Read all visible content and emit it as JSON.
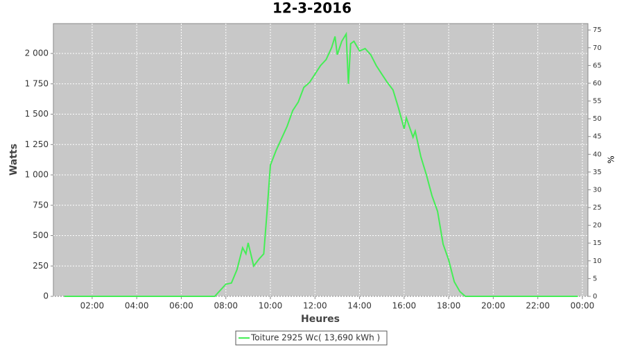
{
  "chart_data": {
    "type": "line",
    "title": "12-3-2016",
    "x_label": "Heures",
    "y_label": "Watts",
    "y2_label": "%",
    "x": [
      0.75,
      7.5,
      7.75,
      8.0,
      8.25,
      8.5,
      8.75,
      8.9,
      9.0,
      9.25,
      9.5,
      9.7,
      9.85,
      10.0,
      10.25,
      10.5,
      10.75,
      11.0,
      11.25,
      11.5,
      11.75,
      12.0,
      12.25,
      12.5,
      12.75,
      12.9,
      13.0,
      13.2,
      13.4,
      13.5,
      13.6,
      13.75,
      14.0,
      14.25,
      14.5,
      14.75,
      15.0,
      15.25,
      15.5,
      15.75,
      16.0,
      16.1,
      16.4,
      16.5,
      16.75,
      17.0,
      17.25,
      17.5,
      17.75,
      18.0,
      18.25,
      18.5,
      18.75,
      23.8
    ],
    "series": [
      {
        "name": "Toiture 2925 Wc( 13,690 kWh )",
        "color": "#44ee55",
        "values": [
          0,
          0,
          50,
          100,
          110,
          220,
          400,
          350,
          440,
          250,
          310,
          350,
          700,
          1080,
          1200,
          1300,
          1400,
          1530,
          1600,
          1720,
          1760,
          1830,
          1900,
          1950,
          2050,
          2140,
          1990,
          2100,
          2160,
          1750,
          2080,
          2100,
          2020,
          2040,
          1990,
          1900,
          1830,
          1760,
          1700,
          1550,
          1380,
          1470,
          1310,
          1360,
          1150,
          1000,
          830,
          700,
          430,
          300,
          120,
          40,
          0,
          0
        ]
      }
    ],
    "xlim": [
      0.26,
      24.25
    ],
    "xticks": [
      {
        "value": 2,
        "label": "02:00"
      },
      {
        "value": 4,
        "label": "04:00"
      },
      {
        "value": 6,
        "label": "06:00"
      },
      {
        "value": 8,
        "label": "08:00"
      },
      {
        "value": 10,
        "label": "10:00"
      },
      {
        "value": 12,
        "label": "12:00"
      },
      {
        "value": 14,
        "label": "14:00"
      },
      {
        "value": 16,
        "label": "16:00"
      },
      {
        "value": 18,
        "label": "18:00"
      },
      {
        "value": 20,
        "label": "20:00"
      },
      {
        "value": 22,
        "label": "22:00"
      },
      {
        "value": 24,
        "label": "00:00"
      }
    ],
    "ylim": [
      0,
      2246
    ],
    "yticks": [
      0,
      250,
      500,
      750,
      {
        "value": 1000,
        "label": "1 000"
      },
      {
        "value": 1250,
        "label": "1 250"
      },
      {
        "value": 1500,
        "label": "1 500"
      },
      {
        "value": 1750,
        "label": "1 750"
      },
      {
        "value": 2000,
        "label": "2 000"
      }
    ],
    "y2lim": [
      0,
      76.8
    ],
    "y2ticks": [
      0,
      5,
      10,
      15,
      20,
      25,
      30,
      35,
      40,
      45,
      50,
      55,
      60,
      65,
      70,
      75
    ],
    "grid": true,
    "legend": "bottom"
  }
}
